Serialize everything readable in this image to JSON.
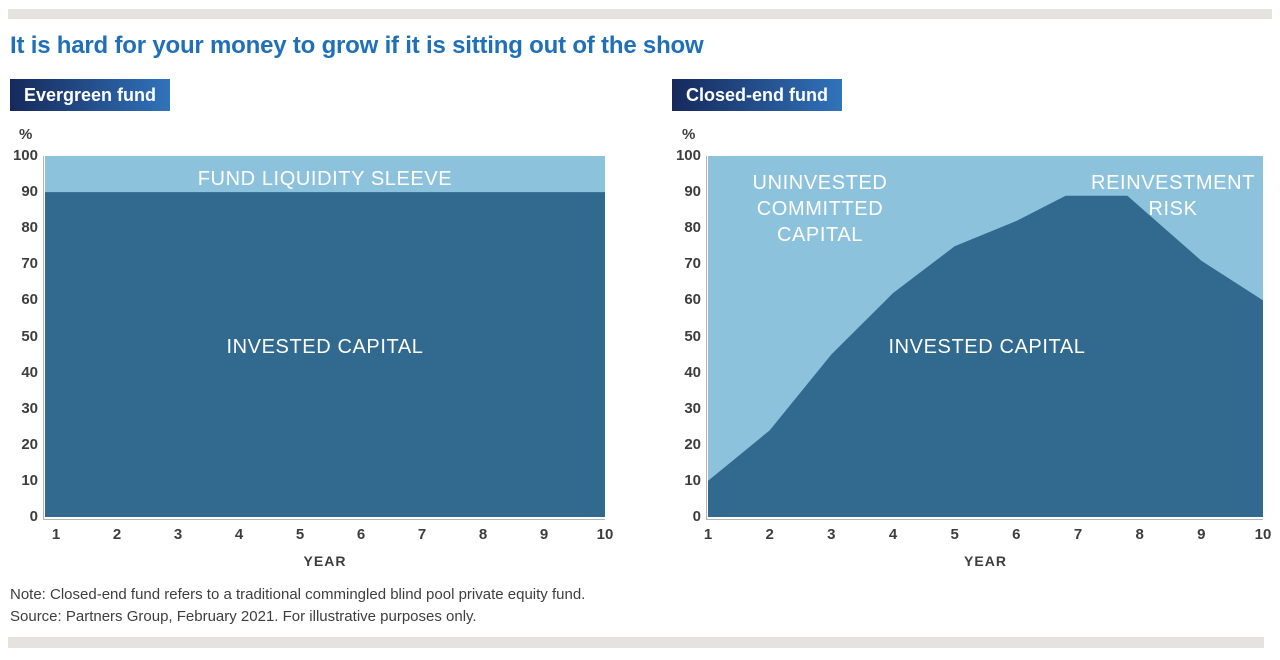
{
  "page": {
    "title": "It is hard for your money to grow if it is sitting out of the show",
    "notes": [
      "Note: Closed-end fund refers to a traditional commingled blind pool private equity fund.",
      "Source: Partners Group, February 2021. For illustrative purposes only."
    ]
  },
  "colors": {
    "title_blue": "#1F70B8",
    "badge_gradient_start": "#16295B",
    "badge_gradient_end": "#3173BB",
    "invested_dark_blue": "#31698F",
    "uninvested_light_blue": "#8DC2DC",
    "axis_line_gray": "#B7B4B0",
    "tick_text_gray": "#3D3D3D",
    "divider_bar_gray": "#E5E3DF"
  },
  "chart_data": [
    {
      "type": "area",
      "badge_label": "Evergreen fund",
      "unit_label": "%",
      "xlabel": "YEAR",
      "xlim": [
        1,
        10
      ],
      "ylim": [
        0,
        100
      ],
      "x_ticks": [
        1,
        2,
        3,
        4,
        5,
        6,
        7,
        8,
        9,
        10
      ],
      "y_ticks": [
        0,
        10,
        20,
        30,
        40,
        50,
        60,
        70,
        80,
        90,
        100
      ],
      "grid": false,
      "legend_position": "labels-inside-areas",
      "series": [
        {
          "name": "INVESTED CAPITAL",
          "color": "#31698F",
          "points": [
            [
              1,
              90
            ],
            [
              10,
              90
            ]
          ]
        },
        {
          "name": "FUND LIQUIDITY SLEEVE",
          "color": "#8DC2DC",
          "points": [
            [
              1,
              10
            ],
            [
              10,
              10
            ]
          ],
          "note": "stacked band from 90 to 100"
        }
      ],
      "area_labels": {
        "sleeve": "FUND LIQUIDITY SLEEVE",
        "invested": "INVESTED CAPITAL"
      }
    },
    {
      "type": "area",
      "badge_label": "Closed-end fund",
      "unit_label": "%",
      "xlabel": "YEAR",
      "xlim": [
        1,
        10
      ],
      "ylim": [
        0,
        100
      ],
      "x_ticks": [
        1,
        2,
        3,
        4,
        5,
        6,
        7,
        8,
        9,
        10
      ],
      "y_ticks": [
        0,
        10,
        20,
        30,
        40,
        50,
        60,
        70,
        80,
        90,
        100
      ],
      "grid": false,
      "legend_position": "labels-inside-areas",
      "series": [
        {
          "name": "INVESTED CAPITAL",
          "color": "#31698F",
          "points": [
            [
              1,
              10
            ],
            [
              2,
              24
            ],
            [
              3,
              45
            ],
            [
              4,
              62
            ],
            [
              5,
              75
            ],
            [
              6,
              82
            ],
            [
              6.8,
              89
            ],
            [
              7.8,
              89
            ],
            [
              9,
              71
            ],
            [
              10,
              60
            ]
          ]
        },
        {
          "name": "UNINVESTED COMMITTED CAPITAL / REINVESTMENT RISK",
          "color": "#8DC2DC",
          "note": "light area above invested capital up to 100"
        }
      ],
      "area_labels": {
        "uninvested_lines": [
          "UNINVESTED",
          "COMMITTED",
          "CAPITAL"
        ],
        "reinvestment_lines": [
          "REINVESTMENT",
          "RISK"
        ],
        "invested": "INVESTED CAPITAL"
      }
    }
  ]
}
